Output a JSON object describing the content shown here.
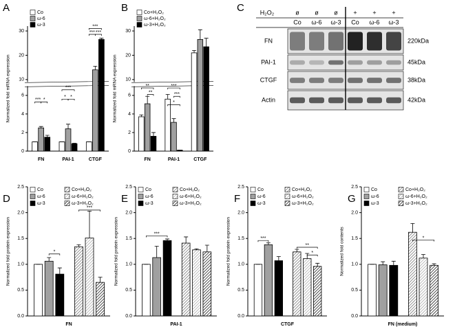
{
  "chart_data": [
    {
      "panel": "A",
      "type": "bar",
      "y_label": "Normalized fold mRNA expression",
      "categories": [
        "FN",
        "PAI-1",
        "CTGF"
      ],
      "series": [
        {
          "name": "Co",
          "color": "#ffffff",
          "values": [
            1,
            1,
            1
          ],
          "errors": [
            0,
            0,
            0
          ]
        },
        {
          "name": "ω-6",
          "color": "#a0a0a0",
          "values": [
            2.5,
            2.4,
            14
          ],
          "errors": [
            0.15,
            0.5,
            1.5
          ]
        },
        {
          "name": "ω-3",
          "color": "#000000",
          "values": [
            1.5,
            0.8,
            26.5
          ],
          "errors": [
            0.2,
            0.05,
            0.5
          ]
        }
      ],
      "ylim": [
        0,
        32
      ],
      "axis_break": [
        7,
        9
      ],
      "yticks": [
        0,
        2,
        4,
        6,
        10,
        20,
        30
      ],
      "annotations": [
        "***",
        "*",
        "***",
        "*",
        "*",
        "***",
        "***",
        "***"
      ]
    },
    {
      "panel": "B",
      "type": "bar",
      "y_label": "Normalized fold mRNA expression",
      "categories": [
        "FN",
        "PAI-1",
        "CTGF"
      ],
      "series": [
        {
          "name": "Co+H₂O₂",
          "color": "#ffffff",
          "values": [
            3.7,
            5.6,
            21
          ],
          "errors": [
            0.2,
            0.5,
            1
          ]
        },
        {
          "name": "ω-6+H₂O₂",
          "color": "#a0a0a0",
          "values": [
            5.1,
            3.1,
            26.5
          ],
          "errors": [
            0.8,
            0.4,
            4
          ]
        },
        {
          "name": "ω-3+H₂O₂",
          "color": "#000000",
          "values": [
            1.6,
            0.1,
            23.5
          ],
          "errors": [
            0.4,
            0,
            3.5
          ]
        }
      ],
      "ylim": [
        0,
        32
      ],
      "axis_break": [
        7,
        9
      ],
      "yticks": [
        0,
        2,
        4,
        6,
        10,
        20,
        30
      ],
      "annotations": [
        "**",
        "**",
        "***",
        "***",
        "*"
      ]
    },
    {
      "panel": "D",
      "type": "bar",
      "y_label": "Normalized fold protein expression",
      "categories": [
        "FN"
      ],
      "series": [
        {
          "name": "Co",
          "color": "#ffffff",
          "hatch": false,
          "values": [
            1.0
          ],
          "errors": [
            0
          ]
        },
        {
          "name": "ω-6",
          "color": "#a0a0a0",
          "hatch": false,
          "values": [
            1.06
          ],
          "errors": [
            0.07
          ]
        },
        {
          "name": "ω-3",
          "color": "#000000",
          "hatch": false,
          "values": [
            0.81
          ],
          "errors": [
            0.12
          ]
        },
        {
          "name": "Co+H₂O₂",
          "color": "#ffffff",
          "hatch": true,
          "values": [
            1.34
          ],
          "errors": [
            0.04
          ]
        },
        {
          "name": "ω-6+H₂O₂",
          "color": "#a0a0a0",
          "hatch": true,
          "values": [
            1.51
          ],
          "errors": [
            0.52
          ]
        },
        {
          "name": "ω-3+H₂O₂",
          "color": "#000000",
          "hatch": true,
          "values": [
            0.65
          ],
          "errors": [
            0.1
          ]
        }
      ],
      "ylim": [
        0,
        2.5
      ],
      "yticks": [
        {
          "value": 0,
          "label": "0.0"
        },
        0.5,
        {
          "value": 1,
          "label": "1.0"
        },
        1.5,
        {
          "value": 2,
          "label": "2.0"
        },
        2.5
      ],
      "annotations": [
        "*",
        "***"
      ]
    },
    {
      "panel": "E",
      "type": "bar",
      "y_label": "Normalized fold protein expression",
      "categories": [
        "PAI-1"
      ],
      "series": [
        {
          "name": "Co",
          "color": "#ffffff",
          "hatch": false,
          "values": [
            1.0
          ],
          "errors": [
            0
          ]
        },
        {
          "name": "ω-6",
          "color": "#a0a0a0",
          "hatch": false,
          "values": [
            1.13
          ],
          "errors": [
            0.22
          ]
        },
        {
          "name": "ω-3",
          "color": "#000000",
          "hatch": false,
          "values": [
            1.46
          ],
          "errors": [
            0.03
          ]
        },
        {
          "name": "Co+H₂O₂",
          "color": "#ffffff",
          "hatch": true,
          "values": [
            1.41
          ],
          "errors": [
            0.12
          ]
        },
        {
          "name": "ω-6+H₂O₂",
          "color": "#a0a0a0",
          "hatch": true,
          "values": [
            1.28
          ],
          "errors": [
            0.02
          ]
        },
        {
          "name": "ω-3+H₂O₂",
          "color": "#000000",
          "hatch": true,
          "values": [
            1.24
          ],
          "errors": [
            0.13
          ]
        }
      ],
      "ylim": [
        0,
        2.5
      ],
      "yticks": [
        {
          "value": 0,
          "label": "0.0"
        },
        0.5,
        {
          "value": 1,
          "label": "1.0"
        },
        1.5,
        {
          "value": 2,
          "label": "2.0"
        },
        2.5
      ],
      "annotations": [
        "***"
      ]
    },
    {
      "panel": "F",
      "type": "bar",
      "y_label": "Normalized fold protein expression",
      "categories": [
        "CTGF"
      ],
      "series": [
        {
          "name": "Co",
          "color": "#ffffff",
          "hatch": false,
          "values": [
            1.0
          ],
          "errors": [
            0
          ]
        },
        {
          "name": "ω-6",
          "color": "#a0a0a0",
          "hatch": false,
          "values": [
            1.38
          ],
          "errors": [
            0.04
          ]
        },
        {
          "name": "ω-3",
          "color": "#000000",
          "hatch": false,
          "values": [
            1.07
          ],
          "errors": [
            0.08
          ]
        },
        {
          "name": "Co+H₂O₂",
          "color": "#ffffff",
          "hatch": true,
          "values": [
            1.24
          ],
          "errors": [
            0.05
          ]
        },
        {
          "name": "ω-6+H₂O₂",
          "color": "#a0a0a0",
          "hatch": true,
          "values": [
            1.11
          ],
          "errors": [
            0.1
          ]
        },
        {
          "name": "ω-3+H₂O₂",
          "color": "#000000",
          "hatch": true,
          "values": [
            0.96
          ],
          "errors": [
            0.06
          ]
        }
      ],
      "ylim": [
        0,
        2.5
      ],
      "yticks": [
        {
          "value": 0,
          "label": "0.0"
        },
        0.5,
        {
          "value": 1,
          "label": "1.0"
        },
        1.5,
        {
          "value": 2,
          "label": "2.0"
        },
        2.5
      ],
      "annotations": [
        "***",
        "**",
        "*"
      ]
    },
    {
      "panel": "G",
      "type": "bar",
      "y_label": "Normalized fold contents",
      "categories": [
        "FN (medium)"
      ],
      "series": [
        {
          "name": "Co",
          "color": "#ffffff",
          "hatch": false,
          "values": [
            1.0
          ],
          "errors": [
            0
          ]
        },
        {
          "name": "ω-6",
          "color": "#a0a0a0",
          "hatch": false,
          "values": [
            0.99
          ],
          "errors": [
            0.06
          ]
        },
        {
          "name": "ω-3",
          "color": "#000000",
          "hatch": false,
          "values": [
            0.98
          ],
          "errors": [
            0.08
          ]
        },
        {
          "name": "Co+H₂O₂",
          "color": "#ffffff",
          "hatch": true,
          "values": [
            1.62
          ],
          "errors": [
            0.17
          ]
        },
        {
          "name": "ω-6+H₂O₂",
          "color": "#a0a0a0",
          "hatch": true,
          "values": [
            1.12
          ],
          "errors": [
            0.07
          ]
        },
        {
          "name": "ω-3+H₂O₂",
          "color": "#000000",
          "hatch": true,
          "values": [
            0.98
          ],
          "errors": [
            0.03
          ]
        }
      ],
      "ylim": [
        0,
        2.5
      ],
      "yticks": [
        {
          "value": 0,
          "label": "0.0"
        },
        0.5,
        {
          "value": 1,
          "label": "1.0"
        },
        1.5,
        {
          "value": 2,
          "label": "2.0"
        },
        2.5
      ],
      "annotations": [
        "*"
      ]
    }
  ],
  "blot": {
    "panel": "C",
    "treatment_label": "H₂O₂",
    "treatment": [
      "ø",
      "ø",
      "ø",
      "+",
      "+",
      "+"
    ],
    "lanes": [
      "Co",
      "ω-6",
      "ω-3",
      "Co",
      "ω-6",
      "ω-3"
    ],
    "rows": [
      {
        "protein": "FN",
        "size": "220kDa"
      },
      {
        "protein": "PAI-1",
        "size": "45kDa"
      },
      {
        "protein": "CTGF",
        "size": "38kDa"
      },
      {
        "protein": "Actin",
        "size": "42kDa"
      }
    ]
  }
}
